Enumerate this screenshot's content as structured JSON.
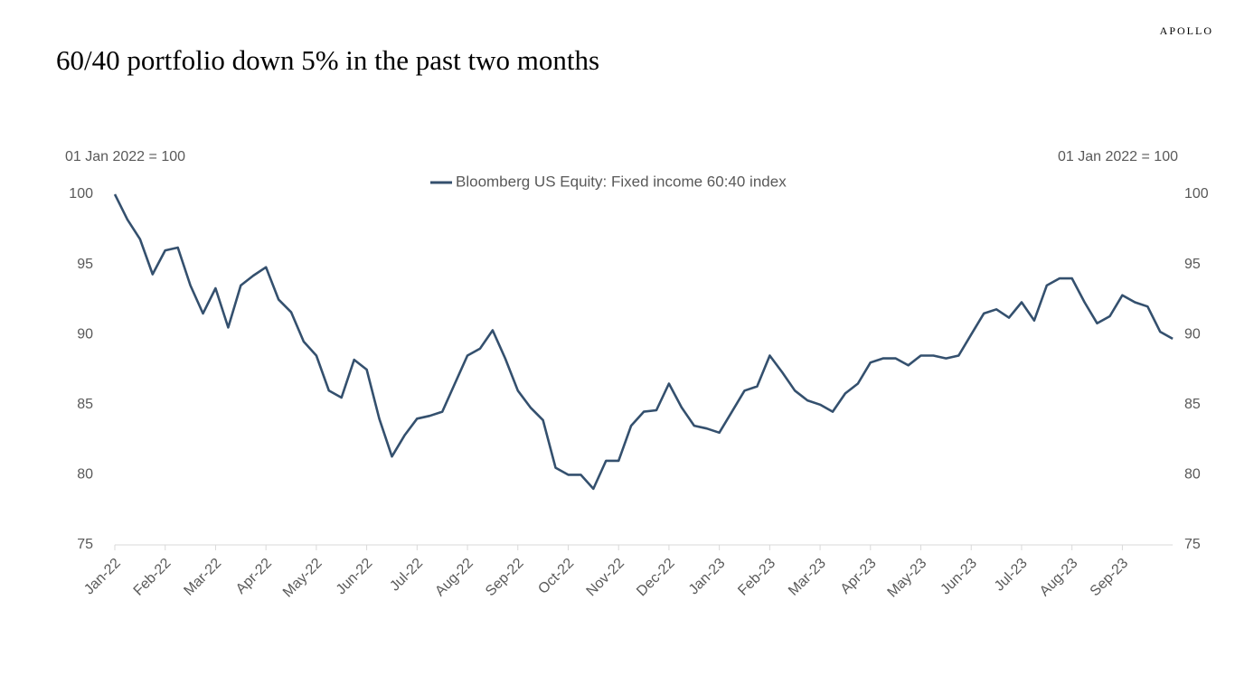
{
  "brand": "APOLLO",
  "chart_data": {
    "type": "line",
    "title": "60/40 portfolio down 5% in the past two months",
    "y_label": "01 Jan 2022 = 100",
    "y2_label": "01 Jan 2022 = 100",
    "categories": [
      "Jan-22",
      null,
      null,
      null,
      "Feb-22",
      null,
      null,
      null,
      "Mar-22",
      null,
      null,
      null,
      "Apr-22",
      null,
      null,
      null,
      "May-22",
      null,
      null,
      null,
      "Jun-22",
      null,
      null,
      null,
      "Jul-22",
      null,
      null,
      null,
      "Aug-22",
      null,
      null,
      null,
      "Sep-22",
      null,
      null,
      null,
      "Oct-22",
      null,
      null,
      null,
      "Nov-22",
      null,
      null,
      null,
      "Dec-22",
      null,
      null,
      null,
      "Jan-23",
      null,
      null,
      null,
      "Feb-23",
      null,
      null,
      null,
      "Mar-23",
      null,
      null,
      null,
      "Apr-23",
      null,
      null,
      null,
      "May-23",
      null,
      null,
      null,
      "Jun-23",
      null,
      null,
      null,
      "Jul-23",
      null,
      null,
      null,
      "Aug-23",
      null,
      null,
      null,
      "Sep-23",
      null,
      null,
      null,
      null
    ],
    "series": [
      {
        "name": "Bloomberg US Equity: Fixed income 60:40 index",
        "color": "#34506e",
        "values": [
          100,
          98.2,
          96.8,
          94.3,
          96,
          96.2,
          93.5,
          91.5,
          93.3,
          90.5,
          93.5,
          94.2,
          94.8,
          92.5,
          91.6,
          89.5,
          88.5,
          86,
          85.5,
          88.2,
          87.5,
          84,
          81.3,
          82.8,
          84,
          84.2,
          84.5,
          86.5,
          88.5,
          89,
          90.3,
          88.3,
          86,
          84.8,
          83.9,
          80.5,
          80,
          80,
          79,
          81,
          81,
          83.5,
          84.5,
          84.6,
          86.5,
          84.8,
          83.5,
          83.3,
          83,
          84.5,
          86,
          86.3,
          88.5,
          87.3,
          86,
          85.3,
          85,
          84.5,
          85.8,
          86.5,
          88,
          88.3,
          88.3,
          87.8,
          88.5,
          88.5,
          88.3,
          88.5,
          90,
          91.5,
          91.8,
          91.2,
          92.3,
          91,
          93.5,
          94,
          94,
          92.3,
          90.8,
          91.3,
          92.8,
          92.3,
          92,
          90.2,
          89.7
        ]
      }
    ],
    "ylim": [
      75,
      100
    ],
    "yticks": [
      75,
      80,
      85,
      90,
      95,
      100
    ],
    "y2lim": [
      75,
      100
    ],
    "y2ticks": [
      75,
      80,
      85,
      90,
      95,
      100
    ],
    "legend": "top",
    "grid": false
  }
}
